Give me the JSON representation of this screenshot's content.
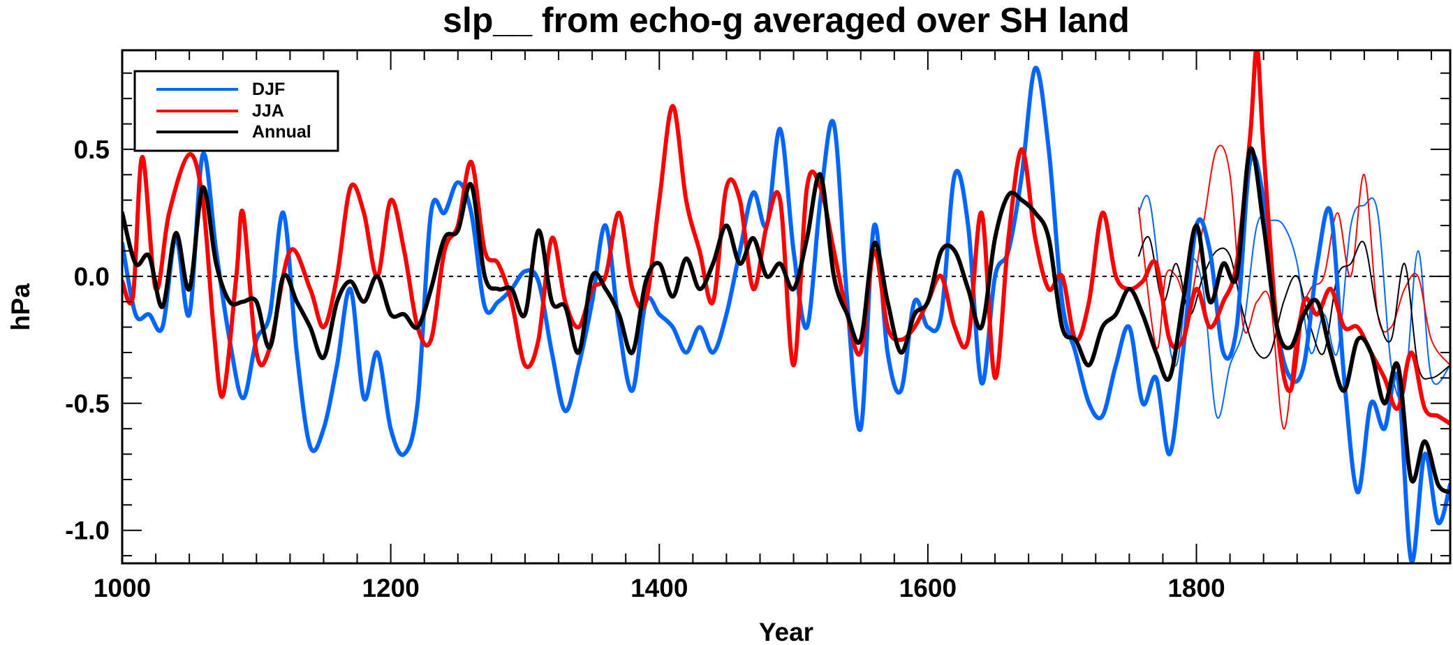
{
  "chart_data": {
    "type": "line",
    "title": "slp__ from echo-g averaged over SH land",
    "xlabel": "Year",
    "ylabel": "hPa",
    "xlim": [
      1000,
      1989
    ],
    "ylim": [
      -1.13,
      0.89
    ],
    "x_ticks": [
      1000,
      1200,
      1400,
      1600,
      1800
    ],
    "x_tick_labels": [
      "1000",
      "1200",
      "1400",
      "1600",
      "1800"
    ],
    "x_minor_step": 25,
    "y_ticks": [
      0.5,
      0.0,
      -0.5,
      -1.0
    ],
    "y_tick_labels": [
      "0.5",
      "0.0",
      "-0.5",
      "-1.0"
    ],
    "y_minor_step": 0.1,
    "zero_line": {
      "y": 0.0,
      "style": "dotted"
    },
    "grid": false,
    "legend": {
      "position": "top-left",
      "entries": [
        {
          "label": "DJF",
          "color": "#0066ff"
        },
        {
          "label": "JJA",
          "color": "#ff0000"
        },
        {
          "label": "Annual",
          "color": "#000000"
        }
      ]
    },
    "series": [
      {
        "name": "DJF",
        "color": "#0066ff",
        "style": "thick",
        "x": [
          1000,
          1010,
          1020,
          1030,
          1040,
          1050,
          1060,
          1070,
          1080,
          1090,
          1100,
          1110,
          1120,
          1130,
          1140,
          1150,
          1160,
          1170,
          1180,
          1190,
          1200,
          1210,
          1220,
          1230,
          1240,
          1250,
          1260,
          1270,
          1280,
          1290,
          1300,
          1310,
          1320,
          1330,
          1340,
          1350,
          1360,
          1370,
          1380,
          1390,
          1400,
          1410,
          1420,
          1430,
          1440,
          1450,
          1460,
          1470,
          1480,
          1490,
          1500,
          1510,
          1520,
          1530,
          1540,
          1550,
          1560,
          1570,
          1580,
          1590,
          1600,
          1610,
          1620,
          1630,
          1640,
          1650,
          1660,
          1670,
          1680,
          1690,
          1700,
          1710,
          1720,
          1730,
          1740,
          1750,
          1760,
          1770,
          1780,
          1790,
          1800,
          1810,
          1820,
          1830,
          1840,
          1850,
          1860,
          1870,
          1880,
          1890,
          1900,
          1910,
          1920,
          1930,
          1940,
          1950,
          1960,
          1970,
          1980,
          1989
        ],
        "y": [
          0.13,
          -0.15,
          -0.15,
          -0.2,
          0.15,
          -0.15,
          0.48,
          0.1,
          -0.25,
          -0.48,
          -0.25,
          -0.15,
          0.25,
          -0.3,
          -0.67,
          -0.6,
          -0.35,
          -0.05,
          -0.48,
          -0.3,
          -0.6,
          -0.7,
          -0.5,
          0.25,
          0.25,
          0.37,
          0.25,
          -0.12,
          -0.1,
          -0.05,
          0.02,
          -0.02,
          -0.3,
          -0.53,
          -0.35,
          -0.1,
          0.2,
          -0.2,
          -0.45,
          -0.1,
          -0.15,
          -0.2,
          -0.3,
          -0.2,
          -0.3,
          -0.15,
          0.1,
          0.33,
          0.2,
          0.58,
          0.1,
          -0.2,
          0.3,
          0.6,
          -0.1,
          -0.6,
          0.2,
          -0.3,
          -0.45,
          -0.1,
          -0.2,
          -0.15,
          0.4,
          0.2,
          -0.42,
          0.0,
          0.1,
          0.4,
          0.82,
          0.5,
          -0.1,
          -0.3,
          -0.5,
          -0.55,
          -0.35,
          -0.2,
          -0.5,
          -0.4,
          -0.7,
          -0.3,
          0.2,
          0.1,
          -0.3,
          -0.2,
          0.45,
          0.3,
          -0.2,
          -0.4,
          -0.35,
          0.05,
          0.25,
          -0.4,
          -0.85,
          -0.5,
          -0.6,
          -0.4,
          -1.12,
          -0.7,
          -0.97,
          -0.82
        ]
      },
      {
        "name": "JJA",
        "color": "#ff0000",
        "style": "thick",
        "x": [
          1000,
          1008,
          1015,
          1025,
          1035,
          1050,
          1060,
          1068,
          1075,
          1085,
          1090,
          1100,
          1110,
          1125,
          1140,
          1150,
          1160,
          1170,
          1180,
          1190,
          1200,
          1210,
          1220,
          1230,
          1240,
          1250,
          1260,
          1270,
          1280,
          1290,
          1300,
          1310,
          1320,
          1330,
          1340,
          1350,
          1360,
          1370,
          1380,
          1390,
          1400,
          1410,
          1420,
          1430,
          1440,
          1450,
          1460,
          1470,
          1480,
          1490,
          1500,
          1510,
          1520,
          1530,
          1540,
          1550,
          1560,
          1570,
          1580,
          1590,
          1600,
          1610,
          1620,
          1630,
          1640,
          1650,
          1660,
          1670,
          1680,
          1690,
          1700,
          1710,
          1720,
          1730,
          1740,
          1750,
          1760,
          1770,
          1780,
          1790,
          1800,
          1810,
          1820,
          1830,
          1840,
          1845,
          1850,
          1860,
          1870,
          1880,
          1890,
          1900,
          1910,
          1920,
          1930,
          1940,
          1950,
          1960,
          1970,
          1980,
          1989
        ],
        "y": [
          -0.02,
          -0.08,
          0.47,
          -0.05,
          0.25,
          0.48,
          0.3,
          -0.2,
          -0.47,
          0.0,
          0.25,
          -0.3,
          -0.28,
          0.1,
          -0.05,
          -0.2,
          0.0,
          0.35,
          0.25,
          0.0,
          0.3,
          0.1,
          -0.2,
          -0.25,
          0.1,
          0.2,
          0.45,
          0.1,
          0.05,
          -0.1,
          -0.35,
          -0.25,
          0.15,
          -0.1,
          -0.2,
          -0.05,
          0.0,
          0.25,
          -0.05,
          -0.1,
          0.3,
          0.67,
          0.3,
          0.1,
          -0.1,
          0.35,
          0.3,
          -0.05,
          0.2,
          0.3,
          -0.35,
          0.35,
          0.35,
          0.1,
          -0.15,
          -0.3,
          0.1,
          -0.2,
          -0.25,
          -0.2,
          -0.1,
          0.0,
          -0.2,
          -0.25,
          0.25,
          -0.4,
          0.15,
          0.5,
          0.15,
          -0.05,
          0.0,
          -0.25,
          -0.1,
          0.25,
          0.0,
          -0.05,
          -0.02,
          0.05,
          -0.25,
          -0.25,
          -0.05,
          -0.2,
          -0.1,
          0.05,
          0.55,
          0.9,
          0.5,
          -0.2,
          -0.45,
          -0.1,
          -0.15,
          -0.05,
          -0.2,
          -0.2,
          -0.3,
          -0.4,
          -0.52,
          -0.3,
          -0.52,
          -0.55,
          -0.58
        ]
      },
      {
        "name": "Annual",
        "color": "#000000",
        "style": "thick",
        "x": [
          1000,
          1010,
          1020,
          1030,
          1040,
          1050,
          1060,
          1070,
          1080,
          1090,
          1100,
          1110,
          1120,
          1130,
          1140,
          1150,
          1160,
          1170,
          1180,
          1190,
          1200,
          1210,
          1220,
          1230,
          1240,
          1250,
          1260,
          1270,
          1280,
          1290,
          1300,
          1310,
          1320,
          1330,
          1340,
          1350,
          1360,
          1370,
          1380,
          1390,
          1400,
          1410,
          1420,
          1430,
          1440,
          1450,
          1460,
          1470,
          1480,
          1490,
          1500,
          1510,
          1520,
          1530,
          1540,
          1550,
          1560,
          1570,
          1580,
          1590,
          1600,
          1610,
          1620,
          1630,
          1640,
          1650,
          1660,
          1670,
          1680,
          1690,
          1700,
          1710,
          1720,
          1730,
          1740,
          1750,
          1760,
          1770,
          1780,
          1790,
          1800,
          1810,
          1820,
          1830,
          1840,
          1850,
          1860,
          1870,
          1880,
          1890,
          1900,
          1910,
          1920,
          1930,
          1940,
          1950,
          1960,
          1970,
          1980,
          1989
        ],
        "y": [
          0.25,
          0.05,
          0.08,
          -0.12,
          0.17,
          -0.05,
          0.35,
          0.05,
          -0.1,
          -0.1,
          -0.1,
          -0.28,
          0.0,
          -0.1,
          -0.2,
          -0.32,
          -0.1,
          -0.02,
          -0.1,
          0.0,
          -0.15,
          -0.15,
          -0.2,
          -0.05,
          0.15,
          0.18,
          0.36,
          0.0,
          -0.05,
          -0.05,
          -0.15,
          0.18,
          -0.1,
          -0.12,
          -0.3,
          0.0,
          -0.05,
          -0.15,
          -0.3,
          -0.02,
          0.05,
          -0.08,
          0.07,
          -0.05,
          0.05,
          0.2,
          0.05,
          0.15,
          0.0,
          0.05,
          -0.05,
          0.15,
          0.4,
          0.0,
          -0.15,
          -0.25,
          0.13,
          -0.1,
          -0.3,
          -0.15,
          -0.1,
          0.1,
          0.1,
          -0.05,
          -0.2,
          0.15,
          0.32,
          0.3,
          0.25,
          0.15,
          -0.2,
          -0.25,
          -0.35,
          -0.2,
          -0.15,
          -0.05,
          -0.15,
          -0.3,
          -0.4,
          -0.1,
          0.2,
          -0.1,
          0.05,
          0.0,
          0.5,
          0.2,
          -0.2,
          -0.28,
          -0.15,
          -0.1,
          -0.3,
          -0.45,
          -0.25,
          -0.3,
          -0.5,
          -0.35,
          -0.8,
          -0.65,
          -0.82,
          -0.85
        ]
      },
      {
        "name": "DJF (thin)",
        "color": "#0066ff",
        "style": "thin",
        "x": [
          1757,
          1765,
          1775,
          1785,
          1795,
          1805,
          1815,
          1825,
          1835,
          1845,
          1855,
          1865,
          1875,
          1885,
          1895,
          1905,
          1915,
          1925,
          1935,
          1945,
          1955,
          1965,
          1975,
          1989
        ],
        "y": [
          0.25,
          0.3,
          -0.1,
          -0.35,
          0.05,
          -0.05,
          -0.55,
          -0.35,
          -0.2,
          0.2,
          0.22,
          0.2,
          0.05,
          -0.3,
          -0.15,
          -0.3,
          0.2,
          0.28,
          0.25,
          -0.35,
          -0.45,
          0.1,
          -0.4,
          -0.35
        ]
      },
      {
        "name": "JJA (thin)",
        "color": "#ff0000",
        "style": "thin",
        "x": [
          1757,
          1770,
          1777,
          1785,
          1795,
          1805,
          1815,
          1825,
          1835,
          1845,
          1855,
          1865,
          1875,
          1885,
          1895,
          1905,
          1915,
          1925,
          1935,
          1945,
          1955,
          1965,
          1975,
          1989
        ],
        "y": [
          0.27,
          -0.28,
          0.0,
          0.0,
          -0.1,
          0.2,
          0.5,
          0.4,
          -0.2,
          -0.1,
          -0.1,
          -0.6,
          -0.2,
          -0.05,
          0.0,
          0.25,
          0.0,
          0.4,
          -0.15,
          -0.2,
          -0.05,
          0.0,
          -0.25,
          -0.35
        ]
      },
      {
        "name": "Annual (thin)",
        "color": "#000000",
        "style": "thin",
        "x": [
          1757,
          1765,
          1775,
          1785,
          1795,
          1805,
          1815,
          1825,
          1835,
          1845,
          1855,
          1865,
          1875,
          1885,
          1895,
          1905,
          1915,
          1925,
          1935,
          1945,
          1955,
          1965,
          1975,
          1989
        ],
        "y": [
          0.08,
          0.15,
          -0.1,
          0.05,
          -0.15,
          0.0,
          0.1,
          0.08,
          -0.15,
          -0.3,
          -0.3,
          -0.1,
          0.0,
          -0.2,
          -0.3,
          0.0,
          0.05,
          0.13,
          -0.15,
          -0.25,
          0.05,
          -0.35,
          -0.4,
          -0.35
        ]
      }
    ]
  }
}
